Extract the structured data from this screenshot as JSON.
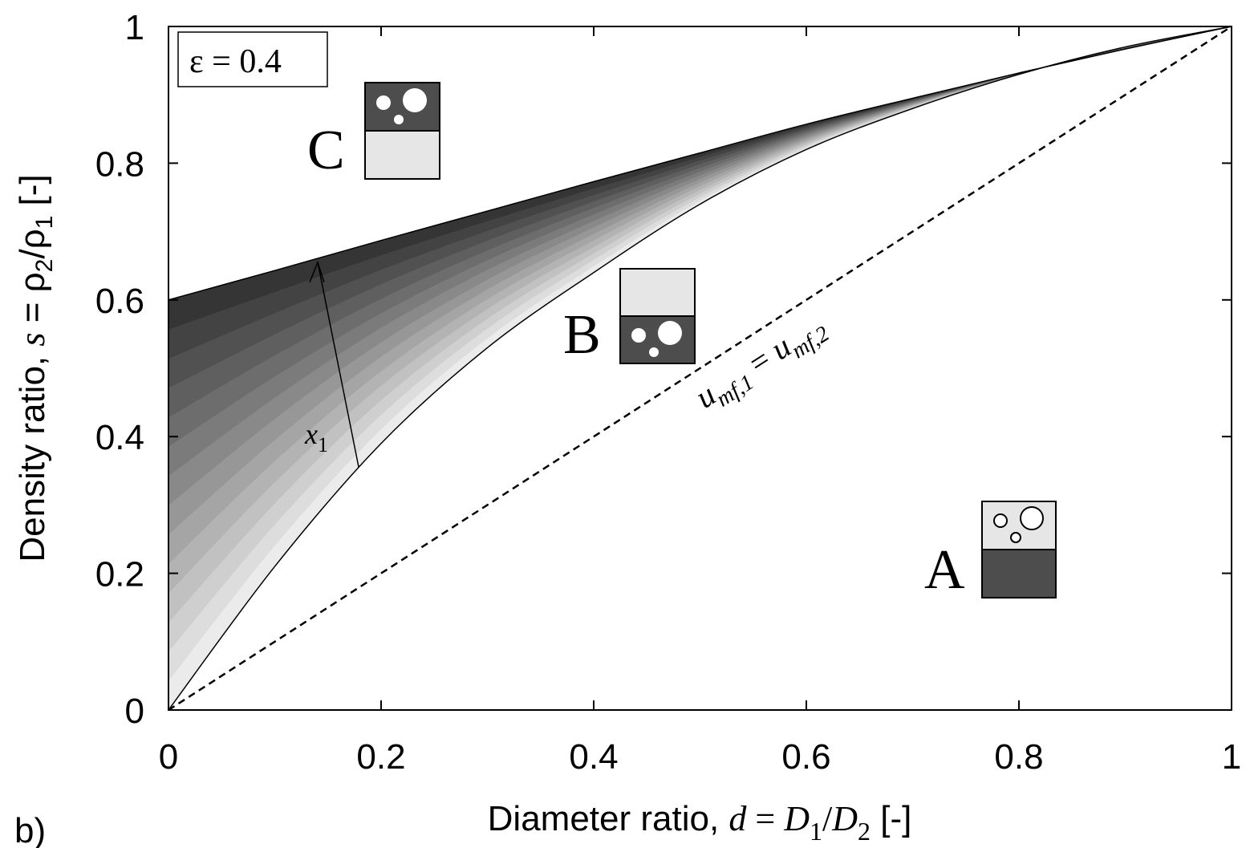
{
  "chart_data": {
    "type": "line",
    "x": [
      0,
      0.1,
      0.2,
      0.3,
      0.4,
      0.5,
      0.6,
      0.7,
      0.8,
      0.9,
      1
    ],
    "series": [
      {
        "values": [
          0.6,
          0.643,
          0.687,
          0.73,
          0.773,
          0.815,
          0.857,
          0.895,
          0.932,
          0.967,
          1
        ],
        "color": "#000000"
      },
      {
        "values": [
          0,
          0.21,
          0.39,
          0.53,
          0.64,
          0.74,
          0.82,
          0.88,
          0.93,
          0.97,
          1
        ],
        "color": "#000000"
      },
      {
        "values": [
          0,
          0.1,
          0.2,
          0.3,
          0.4,
          0.5,
          0.6,
          0.7,
          0.8,
          0.9,
          1
        ],
        "color": "#000000",
        "dash": true
      }
    ],
    "shade_between": [
      1,
      0
    ],
    "shade_colors": [
      "#f2f2f2",
      "#2e2e2e"
    ],
    "xlim": [
      0,
      1
    ],
    "ylim": [
      0,
      1
    ],
    "xticks": [
      0,
      0.2,
      0.4,
      0.6,
      0.8,
      1
    ],
    "yticks": [
      0,
      0.2,
      0.4,
      0.6,
      0.8,
      1
    ],
    "xlabel": [
      "Diameter ratio, ",
      "d",
      " = ",
      "D",
      "1",
      "/",
      "D",
      "2",
      " [-]"
    ],
    "ylabel": [
      "Density ratio, ",
      "s",
      " = ρ",
      "2",
      "/ρ",
      "1",
      " [-]"
    ],
    "annotations": {
      "epsilon": "ε = 0.4",
      "x1": [
        "x",
        "1"
      ],
      "line_label": [
        "u",
        "mf,1",
        " = ",
        "u",
        "mf,2"
      ],
      "regions": [
        "A",
        "B",
        "C"
      ],
      "panel": "b)"
    }
  }
}
